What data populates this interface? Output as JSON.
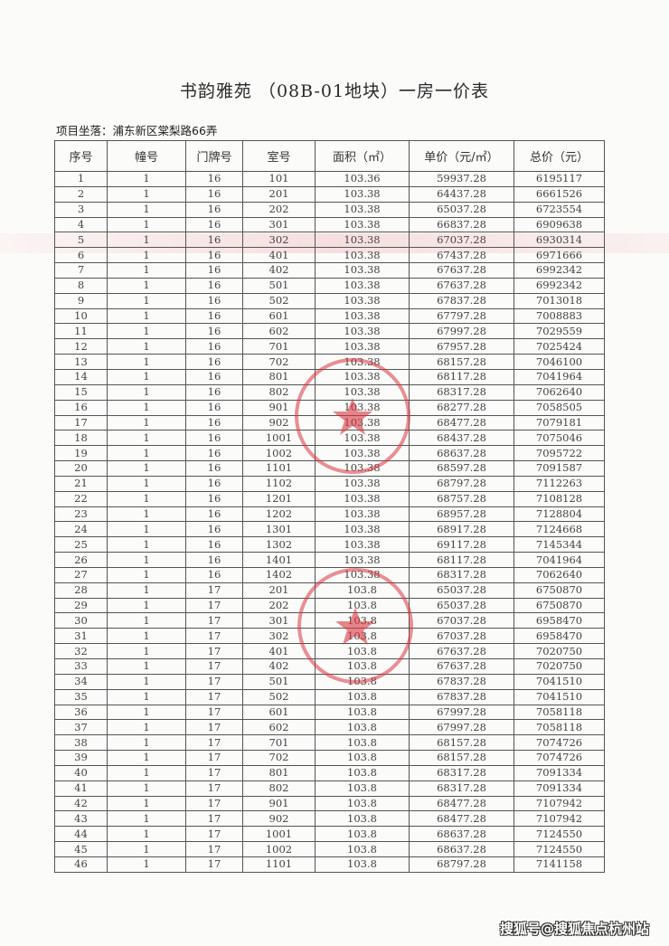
{
  "document": {
    "title": "书韵雅苑 （08B-01地块）一房一价表",
    "location": "项目坐落：浦东新区棠梨路66弄",
    "stamp_color": "#d9363e",
    "watermark": "搜狐号@搜狐焦点杭州站"
  },
  "table": {
    "headers": [
      "序号",
      "幢号",
      "门牌号",
      "室号",
      "面积（㎡）",
      "单价（元/㎡）",
      "总价（元）"
    ],
    "rows": [
      [
        "1",
        "1",
        "16",
        "101",
        "103.36",
        "59937.28",
        "6195117"
      ],
      [
        "2",
        "1",
        "16",
        "201",
        "103.38",
        "64437.28",
        "6661526"
      ],
      [
        "3",
        "1",
        "16",
        "202",
        "103.38",
        "65037.28",
        "6723554"
      ],
      [
        "4",
        "1",
        "16",
        "301",
        "103.38",
        "66837.28",
        "6909638"
      ],
      [
        "5",
        "1",
        "16",
        "302",
        "103.38",
        "67037.28",
        "6930314"
      ],
      [
        "6",
        "1",
        "16",
        "401",
        "103.38",
        "67437.28",
        "6971666"
      ],
      [
        "7",
        "1",
        "16",
        "402",
        "103.38",
        "67637.28",
        "6992342"
      ],
      [
        "8",
        "1",
        "16",
        "501",
        "103.38",
        "67637.28",
        "6992342"
      ],
      [
        "9",
        "1",
        "16",
        "502",
        "103.38",
        "67837.28",
        "7013018"
      ],
      [
        "10",
        "1",
        "16",
        "601",
        "103.38",
        "67797.28",
        "7008883"
      ],
      [
        "11",
        "1",
        "16",
        "602",
        "103.38",
        "67997.28",
        "7029559"
      ],
      [
        "12",
        "1",
        "16",
        "701",
        "103.38",
        "67957.28",
        "7025424"
      ],
      [
        "13",
        "1",
        "16",
        "702",
        "103.38",
        "68157.28",
        "7046100"
      ],
      [
        "14",
        "1",
        "16",
        "801",
        "103.38",
        "68117.28",
        "7041964"
      ],
      [
        "15",
        "1",
        "16",
        "802",
        "103.38",
        "68317.28",
        "7062640"
      ],
      [
        "16",
        "1",
        "16",
        "901",
        "103.38",
        "68277.28",
        "7058505"
      ],
      [
        "17",
        "1",
        "16",
        "902",
        "103.38",
        "68477.28",
        "7079181"
      ],
      [
        "18",
        "1",
        "16",
        "1001",
        "103.38",
        "68437.28",
        "7075046"
      ],
      [
        "19",
        "1",
        "16",
        "1002",
        "103.38",
        "68637.28",
        "7095722"
      ],
      [
        "20",
        "1",
        "16",
        "1101",
        "103.38",
        "68597.28",
        "7091587"
      ],
      [
        "21",
        "1",
        "16",
        "1102",
        "103.38",
        "68797.28",
        "7112263"
      ],
      [
        "22",
        "1",
        "16",
        "1201",
        "103.38",
        "68757.28",
        "7108128"
      ],
      [
        "23",
        "1",
        "16",
        "1202",
        "103.38",
        "68957.28",
        "7128804"
      ],
      [
        "24",
        "1",
        "16",
        "1301",
        "103.38",
        "68917.28",
        "7124668"
      ],
      [
        "25",
        "1",
        "16",
        "1302",
        "103.38",
        "69117.28",
        "7145344"
      ],
      [
        "26",
        "1",
        "16",
        "1401",
        "103.38",
        "68117.28",
        "7041964"
      ],
      [
        "27",
        "1",
        "16",
        "1402",
        "103.38",
        "68317.28",
        "7062640"
      ],
      [
        "28",
        "1",
        "17",
        "201",
        "103.8",
        "65037.28",
        "6750870"
      ],
      [
        "29",
        "1",
        "17",
        "202",
        "103.8",
        "65037.28",
        "6750870"
      ],
      [
        "30",
        "1",
        "17",
        "301",
        "103.8",
        "67037.28",
        "6958470"
      ],
      [
        "31",
        "1",
        "17",
        "302",
        "103.8",
        "67037.28",
        "6958470"
      ],
      [
        "32",
        "1",
        "17",
        "401",
        "103.8",
        "67637.28",
        "7020750"
      ],
      [
        "33",
        "1",
        "17",
        "402",
        "103.8",
        "67637.28",
        "7020750"
      ],
      [
        "34",
        "1",
        "17",
        "501",
        "103.8",
        "67837.28",
        "7041510"
      ],
      [
        "35",
        "1",
        "17",
        "502",
        "103.8",
        "67837.28",
        "7041510"
      ],
      [
        "36",
        "1",
        "17",
        "601",
        "103.8",
        "67997.28",
        "7058118"
      ],
      [
        "37",
        "1",
        "17",
        "602",
        "103.8",
        "67997.28",
        "7058118"
      ],
      [
        "38",
        "1",
        "17",
        "701",
        "103.8",
        "68157.28",
        "7074726"
      ],
      [
        "39",
        "1",
        "17",
        "702",
        "103.8",
        "68157.28",
        "7074726"
      ],
      [
        "40",
        "1",
        "17",
        "801",
        "103.8",
        "68317.28",
        "7091334"
      ],
      [
        "41",
        "1",
        "17",
        "802",
        "103.8",
        "68317.28",
        "7091334"
      ],
      [
        "42",
        "1",
        "17",
        "901",
        "103.8",
        "68477.28",
        "7107942"
      ],
      [
        "43",
        "1",
        "17",
        "902",
        "103.8",
        "68477.28",
        "7107942"
      ],
      [
        "44",
        "1",
        "17",
        "1001",
        "103.8",
        "68637.28",
        "7124550"
      ],
      [
        "45",
        "1",
        "17",
        "1002",
        "103.8",
        "68637.28",
        "7124550"
      ],
      [
        "46",
        "1",
        "17",
        "1101",
        "103.8",
        "68797.28",
        "7141158"
      ]
    ]
  }
}
